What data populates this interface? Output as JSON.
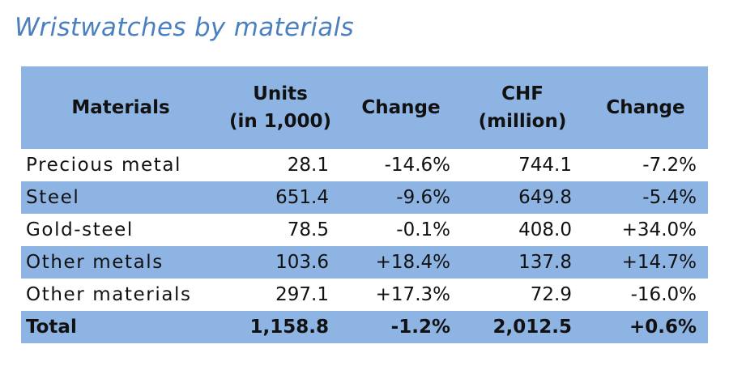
{
  "title": "Wristwatches by materials",
  "table": {
    "headers": {
      "materials": "Materials",
      "units_line1": "Units",
      "units_line2": "(in 1,000)",
      "units_change": "Change",
      "chf_line1": "CHF",
      "chf_line2": "(million)",
      "chf_change": "Change"
    },
    "rows": [
      {
        "material": "Precious metal",
        "units": "28.1",
        "units_change": "-14.6%",
        "chf": "744.1",
        "chf_change": "-7.2%"
      },
      {
        "material": "Steel",
        "units": "651.4",
        "units_change": "-9.6%",
        "chf": "649.8",
        "chf_change": "-5.4%"
      },
      {
        "material": "Gold-steel",
        "units": "78.5",
        "units_change": "-0.1%",
        "chf": "408.0",
        "chf_change": "+34.0%"
      },
      {
        "material": "Other metals",
        "units": "103.6",
        "units_change": "+18.4%",
        "chf": "137.8",
        "chf_change": "+14.7%"
      },
      {
        "material": "Other materials",
        "units": "297.1",
        "units_change": "+17.3%",
        "chf": "72.9",
        "chf_change": "-16.0%"
      }
    ],
    "total": {
      "material": "Total",
      "units": "1,158.8",
      "units_change": "-1.2%",
      "chf": "2,012.5",
      "chf_change": "+0.6%"
    }
  },
  "colors": {
    "title": "#4a7fc0",
    "band": "#8eb4e3",
    "text": "#111111"
  }
}
